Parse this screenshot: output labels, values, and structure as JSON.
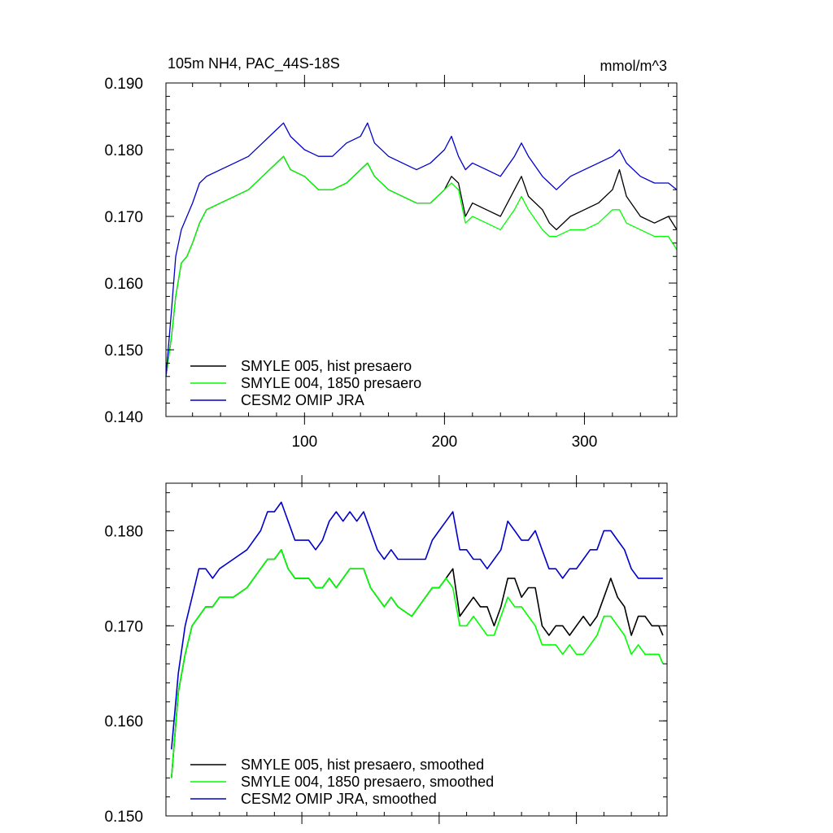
{
  "chart_data": [
    {
      "type": "line",
      "title": "105m NH4, PAC_44S-18S",
      "units": "mmol/m^3",
      "xlim": [
        1,
        366
      ],
      "ylim": [
        0.14,
        0.19
      ],
      "xticks": [
        100,
        200,
        300
      ],
      "xtick_labels": [
        "100",
        "200",
        "300"
      ],
      "yticks": [
        0.14,
        0.15,
        0.16,
        0.17,
        0.18,
        0.19
      ],
      "ytick_labels": [
        "0.140",
        "0.150",
        "0.160",
        "0.170",
        "0.180",
        "0.190"
      ],
      "legend_position": "bottom-left",
      "smoothed": false,
      "series": [
        {
          "name": "SMYLE 005, hist presaero",
          "color": "#000000",
          "x": [
            1,
            5,
            8,
            12,
            16,
            20,
            25,
            30,
            40,
            50,
            60,
            70,
            80,
            85,
            90,
            100,
            110,
            120,
            130,
            140,
            145,
            150,
            160,
            170,
            180,
            190,
            200,
            205,
            210,
            215,
            220,
            230,
            240,
            250,
            255,
            260,
            270,
            275,
            280,
            290,
            300,
            310,
            320,
            325,
            330,
            340,
            350,
            360,
            366
          ],
          "values": [
            0.146,
            0.152,
            0.158,
            0.163,
            0.164,
            0.166,
            0.169,
            0.171,
            0.172,
            0.173,
            0.174,
            0.176,
            0.178,
            0.179,
            0.177,
            0.176,
            0.174,
            0.174,
            0.175,
            0.177,
            0.178,
            0.176,
            0.174,
            0.173,
            0.172,
            0.172,
            0.174,
            0.176,
            0.175,
            0.17,
            0.172,
            0.171,
            0.17,
            0.174,
            0.176,
            0.173,
            0.171,
            0.169,
            0.168,
            0.17,
            0.171,
            0.172,
            0.174,
            0.177,
            0.173,
            0.17,
            0.169,
            0.17,
            0.168
          ]
        },
        {
          "name": "SMYLE 004, 1850 presaero",
          "color": "#00ff00",
          "x": [
            1,
            5,
            8,
            12,
            16,
            20,
            25,
            30,
            40,
            50,
            60,
            70,
            80,
            85,
            90,
            100,
            110,
            120,
            130,
            140,
            145,
            150,
            160,
            170,
            180,
            190,
            200,
            205,
            210,
            215,
            220,
            230,
            240,
            250,
            255,
            260,
            270,
            275,
            280,
            290,
            300,
            310,
            320,
            325,
            330,
            340,
            350,
            360,
            366
          ],
          "values": [
            0.146,
            0.152,
            0.158,
            0.163,
            0.164,
            0.166,
            0.169,
            0.171,
            0.172,
            0.173,
            0.174,
            0.176,
            0.178,
            0.179,
            0.177,
            0.176,
            0.174,
            0.174,
            0.175,
            0.177,
            0.178,
            0.176,
            0.174,
            0.173,
            0.172,
            0.172,
            0.174,
            0.175,
            0.174,
            0.169,
            0.17,
            0.169,
            0.168,
            0.171,
            0.173,
            0.171,
            0.168,
            0.167,
            0.167,
            0.168,
            0.168,
            0.169,
            0.171,
            0.171,
            0.169,
            0.168,
            0.167,
            0.167,
            0.165
          ]
        },
        {
          "name": "CESM2 OMIP JRA",
          "color": "#0000cc",
          "x": [
            1,
            5,
            8,
            12,
            16,
            20,
            25,
            30,
            40,
            50,
            60,
            70,
            80,
            85,
            90,
            100,
            110,
            120,
            130,
            140,
            145,
            150,
            160,
            170,
            180,
            190,
            200,
            205,
            210,
            215,
            220,
            230,
            240,
            250,
            255,
            260,
            270,
            275,
            280,
            290,
            300,
            310,
            320,
            325,
            330,
            340,
            350,
            360,
            366
          ],
          "values": [
            0.146,
            0.156,
            0.164,
            0.168,
            0.17,
            0.172,
            0.175,
            0.176,
            0.177,
            0.178,
            0.179,
            0.181,
            0.183,
            0.184,
            0.182,
            0.18,
            0.179,
            0.179,
            0.181,
            0.182,
            0.184,
            0.181,
            0.179,
            0.178,
            0.177,
            0.178,
            0.18,
            0.182,
            0.179,
            0.177,
            0.178,
            0.177,
            0.176,
            0.179,
            0.181,
            0.179,
            0.176,
            0.175,
            0.174,
            0.176,
            0.177,
            0.178,
            0.179,
            0.18,
            0.178,
            0.176,
            0.175,
            0.175,
            0.174
          ]
        }
      ]
    },
    {
      "type": "line",
      "title": "",
      "xlim": [
        1,
        366
      ],
      "ylim": [
        0.15,
        0.185
      ],
      "xticks": [
        100,
        200,
        300
      ],
      "xtick_labels": [
        "",
        "",
        ""
      ],
      "yticks": [
        0.15,
        0.16,
        0.17,
        0.18
      ],
      "ytick_labels": [
        "0.150",
        "0.160",
        "0.170",
        "0.180"
      ],
      "legend_position": "bottom-left",
      "smoothed": true,
      "series": [
        {
          "name": "SMYLE 005, hist presaero, smoothed",
          "color": "#000000",
          "x": [
            5,
            10,
            15,
            20,
            25,
            30,
            35,
            40,
            50,
            60,
            70,
            75,
            80,
            85,
            90,
            95,
            100,
            105,
            110,
            115,
            120,
            125,
            130,
            135,
            140,
            145,
            150,
            155,
            160,
            165,
            170,
            180,
            190,
            195,
            200,
            205,
            210,
            215,
            220,
            225,
            230,
            235,
            240,
            245,
            250,
            255,
            260,
            265,
            270,
            275,
            280,
            285,
            290,
            295,
            300,
            305,
            310,
            315,
            320,
            325,
            330,
            335,
            340,
            345,
            350,
            355,
            360,
            363
          ],
          "values": [
            0.154,
            0.163,
            0.167,
            0.17,
            0.171,
            0.172,
            0.172,
            0.173,
            0.173,
            0.174,
            0.176,
            0.177,
            0.177,
            0.178,
            0.176,
            0.175,
            0.175,
            0.175,
            0.174,
            0.174,
            0.175,
            0.174,
            0.175,
            0.176,
            0.176,
            0.176,
            0.174,
            0.173,
            0.172,
            0.173,
            0.172,
            0.171,
            0.173,
            0.174,
            0.174,
            0.175,
            0.176,
            0.171,
            0.172,
            0.173,
            0.172,
            0.172,
            0.17,
            0.172,
            0.175,
            0.175,
            0.173,
            0.174,
            0.174,
            0.17,
            0.169,
            0.17,
            0.17,
            0.169,
            0.17,
            0.171,
            0.17,
            0.171,
            0.173,
            0.175,
            0.173,
            0.172,
            0.169,
            0.171,
            0.171,
            0.17,
            0.17,
            0.169
          ]
        },
        {
          "name": "SMYLE 004, 1850 presaero, smoothed",
          "color": "#00ff00",
          "x": [
            5,
            10,
            15,
            20,
            25,
            30,
            35,
            40,
            50,
            60,
            70,
            75,
            80,
            85,
            90,
            95,
            100,
            105,
            110,
            115,
            120,
            125,
            130,
            135,
            140,
            145,
            150,
            155,
            160,
            165,
            170,
            180,
            190,
            195,
            200,
            205,
            210,
            215,
            220,
            225,
            230,
            235,
            240,
            245,
            250,
            255,
            260,
            265,
            270,
            275,
            280,
            285,
            290,
            295,
            300,
            305,
            310,
            315,
            320,
            325,
            330,
            335,
            340,
            345,
            350,
            355,
            360,
            363
          ],
          "values": [
            0.154,
            0.163,
            0.167,
            0.17,
            0.171,
            0.172,
            0.172,
            0.173,
            0.173,
            0.174,
            0.176,
            0.177,
            0.177,
            0.178,
            0.176,
            0.175,
            0.175,
            0.175,
            0.174,
            0.174,
            0.175,
            0.174,
            0.175,
            0.176,
            0.176,
            0.176,
            0.174,
            0.173,
            0.172,
            0.173,
            0.172,
            0.171,
            0.173,
            0.174,
            0.174,
            0.175,
            0.174,
            0.17,
            0.17,
            0.171,
            0.17,
            0.169,
            0.169,
            0.171,
            0.173,
            0.172,
            0.172,
            0.171,
            0.17,
            0.168,
            0.168,
            0.168,
            0.167,
            0.168,
            0.167,
            0.167,
            0.168,
            0.169,
            0.171,
            0.171,
            0.17,
            0.169,
            0.167,
            0.168,
            0.167,
            0.167,
            0.167,
            0.166
          ]
        },
        {
          "name": "CESM2 OMIP JRA, smoothed",
          "color": "#0000cc",
          "x": [
            5,
            10,
            15,
            20,
            25,
            30,
            35,
            40,
            50,
            60,
            70,
            75,
            80,
            85,
            90,
            95,
            100,
            105,
            110,
            115,
            120,
            125,
            130,
            135,
            140,
            145,
            150,
            155,
            160,
            165,
            170,
            180,
            190,
            195,
            200,
            205,
            210,
            215,
            220,
            225,
            230,
            235,
            240,
            245,
            250,
            255,
            260,
            265,
            270,
            275,
            280,
            285,
            290,
            295,
            300,
            305,
            310,
            315,
            320,
            325,
            330,
            335,
            340,
            345,
            350,
            355,
            360,
            363
          ],
          "values": [
            0.157,
            0.165,
            0.17,
            0.173,
            0.176,
            0.176,
            0.175,
            0.176,
            0.177,
            0.178,
            0.18,
            0.182,
            0.182,
            0.183,
            0.181,
            0.179,
            0.179,
            0.179,
            0.178,
            0.179,
            0.181,
            0.182,
            0.181,
            0.182,
            0.181,
            0.182,
            0.18,
            0.178,
            0.177,
            0.178,
            0.177,
            0.177,
            0.177,
            0.179,
            0.18,
            0.181,
            0.182,
            0.178,
            0.178,
            0.177,
            0.177,
            0.176,
            0.177,
            0.178,
            0.181,
            0.18,
            0.179,
            0.179,
            0.18,
            0.178,
            0.176,
            0.176,
            0.175,
            0.176,
            0.176,
            0.177,
            0.178,
            0.178,
            0.18,
            0.18,
            0.179,
            0.178,
            0.176,
            0.175,
            0.175,
            0.175,
            0.175,
            0.175
          ]
        }
      ]
    }
  ]
}
